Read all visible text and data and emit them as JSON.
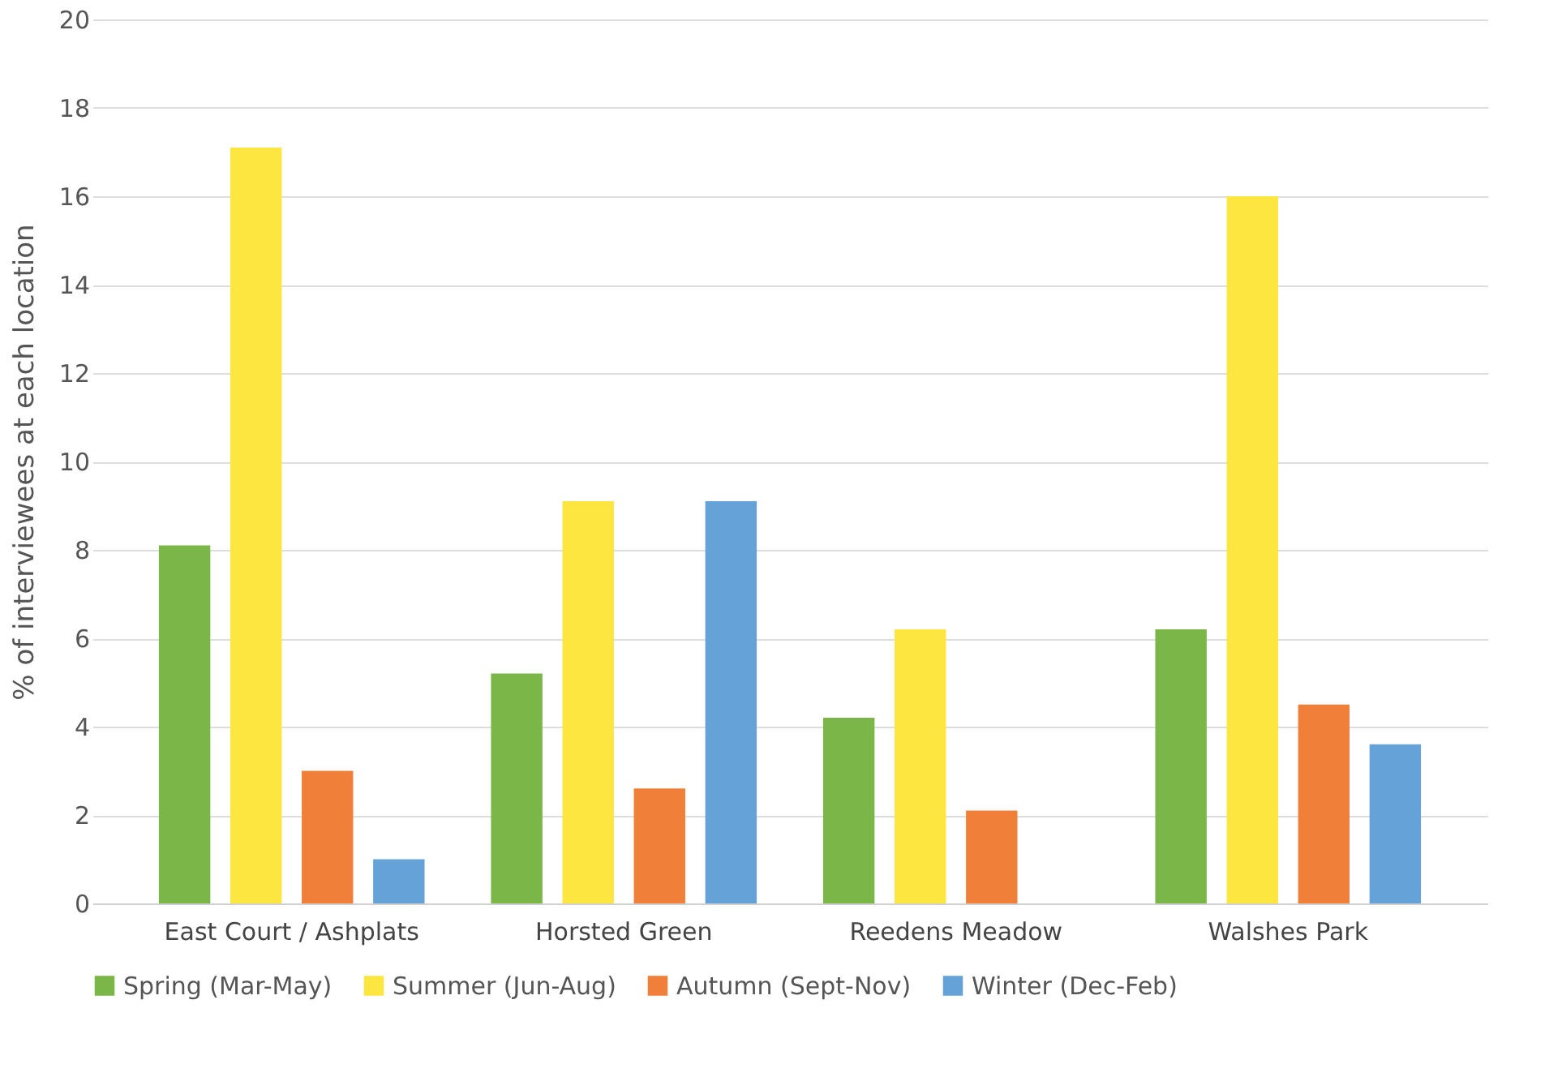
{
  "chart_data": {
    "type": "bar",
    "ylabel": "% of interviewees at each location",
    "categories": [
      "East Court / Ashplats",
      "Horsted Green",
      "Reedens Meadow",
      "Walshes Park"
    ],
    "series": [
      {
        "name": "Spring (Mar-May)",
        "color": "#7ab648",
        "values": [
          8.1,
          5.2,
          4.2,
          6.2
        ]
      },
      {
        "name": "Summer (Jun-Aug)",
        "color": "#fde63f",
        "values": [
          17.1,
          9.1,
          6.2,
          16.0
        ]
      },
      {
        "name": "Autumn (Sept-Nov)",
        "color": "#f07f3a",
        "values": [
          3.0,
          2.6,
          2.1,
          4.5
        ]
      },
      {
        "name": "Winter (Dec-Feb)",
        "color": "#65a2d8",
        "values": [
          1.0,
          9.1,
          0,
          3.6
        ]
      }
    ],
    "ylim": [
      0,
      20
    ],
    "yticks": [
      0,
      2,
      4,
      6,
      8,
      10,
      12,
      14,
      16,
      18,
      20
    ],
    "grid": "y",
    "legend": "bottom"
  }
}
